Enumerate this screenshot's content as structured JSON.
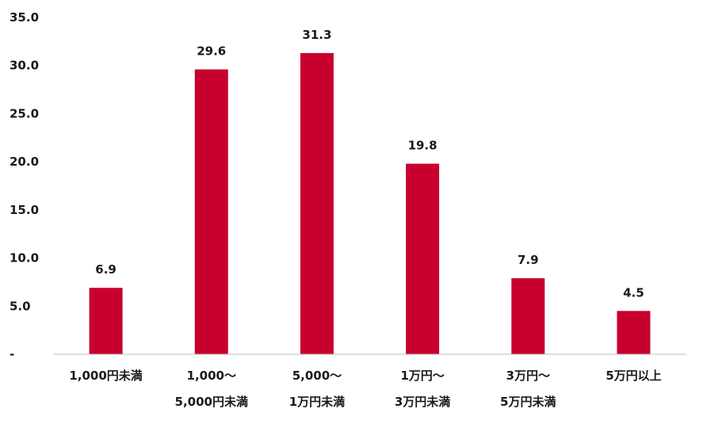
{
  "chart_data": {
    "type": "bar",
    "categories": [
      [
        "1,000円未満"
      ],
      [
        "1,000～",
        "5,000円未満"
      ],
      [
        "5,000～",
        "1万円未満"
      ],
      [
        "1万円～",
        "3万円未満"
      ],
      [
        "3万円～",
        "5万円未満"
      ],
      [
        "5万円以上"
      ]
    ],
    "values": [
      6.9,
      29.6,
      31.3,
      19.8,
      7.9,
      4.5
    ],
    "value_labels": [
      "6.9",
      "29.6",
      "31.3",
      "19.8",
      "7.9",
      "4.5"
    ],
    "ylim": [
      0,
      35
    ],
    "y_ticks": [
      {
        "value": 35,
        "label": "35.0"
      },
      {
        "value": 30,
        "label": "30.0"
      },
      {
        "value": 25,
        "label": "25.0"
      },
      {
        "value": 20,
        "label": "20.0"
      },
      {
        "value": 15,
        "label": "15.0"
      },
      {
        "value": 10,
        "label": "10.0"
      },
      {
        "value": 5,
        "label": "5.0"
      },
      {
        "value": 0,
        "label": "-"
      }
    ],
    "bar_color": "#c8002d",
    "grid": false,
    "legend": "none"
  }
}
